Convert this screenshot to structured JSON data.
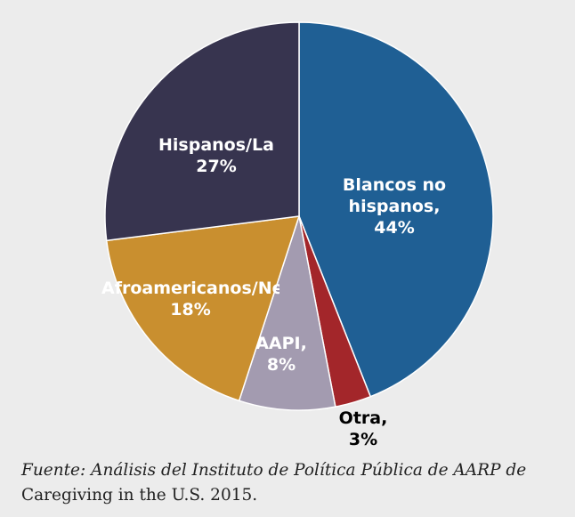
{
  "chart_data": {
    "type": "pie",
    "categories": [
      "Blancos no hispanos,",
      "Otra,",
      "AAPI,",
      "Afroamericanos/Negros,",
      "Hispanos/Latinos,"
    ],
    "values": [
      44,
      3,
      8,
      18,
      27
    ],
    "value_labels": [
      "44%",
      "3%",
      "8%",
      "18%",
      "27%"
    ],
    "colors": [
      "#1f5f94",
      "#a3262a",
      "#a39bb0",
      "#c98f2f",
      "#37344f"
    ],
    "source": {
      "italic": "Fuente: Análisis del Instituto de Política Pública de AARP de",
      "normal": "Caregiving in the U.S. 2015."
    }
  }
}
